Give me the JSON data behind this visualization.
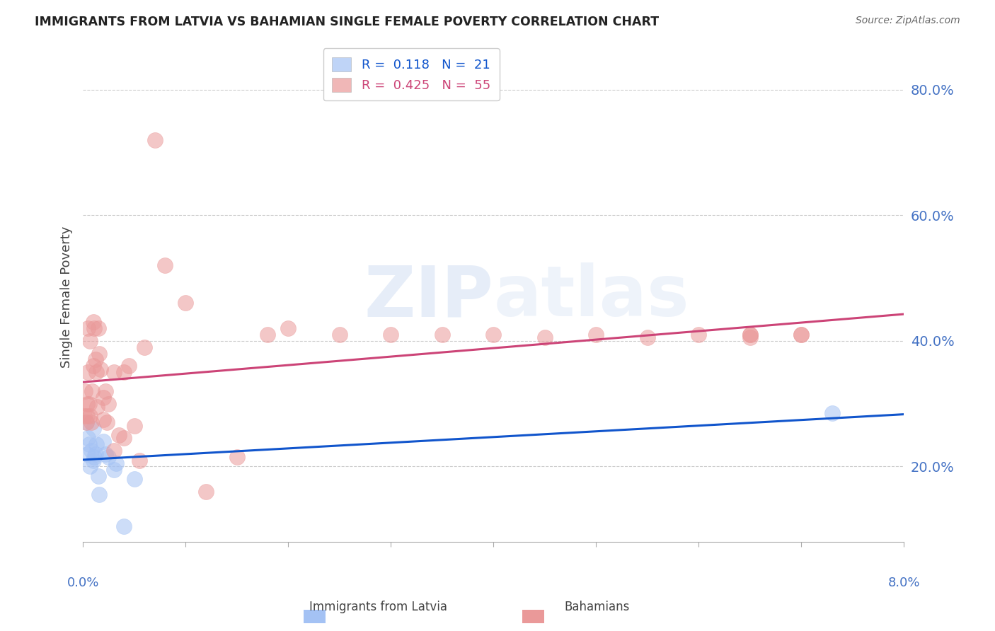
{
  "title": "IMMIGRANTS FROM LATVIA VS BAHAMIAN SINGLE FEMALE POVERTY CORRELATION CHART",
  "source": "Source: ZipAtlas.com",
  "ylabel": "Single Female Poverty",
  "legend_blue_R": "0.118",
  "legend_blue_N": "21",
  "legend_pink_R": "0.425",
  "legend_pink_N": "55",
  "legend_label_blue": "Immigrants from Latvia",
  "legend_label_pink": "Bahamians",
  "watermark": "ZIPatlas",
  "blue_color": "#a4c2f4",
  "pink_color": "#ea9999",
  "blue_line_color": "#1155cc",
  "pink_line_color": "#cc4477",
  "blue_x": [
    0.0003,
    0.0004,
    0.0005,
    0.0006,
    0.0007,
    0.0008,
    0.001,
    0.001,
    0.0011,
    0.0012,
    0.0013,
    0.0015,
    0.0016,
    0.002,
    0.0022,
    0.0025,
    0.003,
    0.0032,
    0.004,
    0.005,
    0.073
  ],
  "blue_y": [
    0.27,
    0.22,
    0.245,
    0.235,
    0.2,
    0.225,
    0.26,
    0.21,
    0.215,
    0.22,
    0.235,
    0.185,
    0.155,
    0.24,
    0.22,
    0.215,
    0.195,
    0.205,
    0.105,
    0.18,
    0.285
  ],
  "pink_x": [
    0.0001,
    0.0002,
    0.0003,
    0.0004,
    0.0004,
    0.0005,
    0.0005,
    0.0006,
    0.0007,
    0.0007,
    0.0008,
    0.0009,
    0.001,
    0.001,
    0.0011,
    0.0012,
    0.0013,
    0.0014,
    0.0015,
    0.0016,
    0.0017,
    0.002,
    0.002,
    0.0022,
    0.0023,
    0.0025,
    0.003,
    0.003,
    0.0035,
    0.004,
    0.004,
    0.0045,
    0.005,
    0.0055,
    0.006,
    0.007,
    0.008,
    0.01,
    0.012,
    0.015,
    0.018,
    0.02,
    0.025,
    0.03,
    0.035,
    0.04,
    0.045,
    0.05,
    0.055,
    0.06,
    0.065,
    0.065,
    0.065,
    0.07,
    0.07
  ],
  "pink_y": [
    0.28,
    0.32,
    0.27,
    0.3,
    0.28,
    0.42,
    0.35,
    0.3,
    0.4,
    0.28,
    0.27,
    0.32,
    0.43,
    0.36,
    0.42,
    0.37,
    0.35,
    0.295,
    0.42,
    0.38,
    0.355,
    0.31,
    0.275,
    0.32,
    0.27,
    0.3,
    0.35,
    0.225,
    0.25,
    0.35,
    0.245,
    0.36,
    0.265,
    0.21,
    0.39,
    0.72,
    0.52,
    0.46,
    0.16,
    0.215,
    0.41,
    0.42,
    0.41,
    0.41,
    0.41,
    0.41,
    0.405,
    0.41,
    0.405,
    0.41,
    0.41,
    0.41,
    0.405,
    0.41,
    0.41
  ],
  "xmin": 0.0,
  "xmax": 0.08,
  "ymin": 0.08,
  "ymax": 0.86,
  "ytick_positions": [
    0.2,
    0.4,
    0.6,
    0.8
  ],
  "xtick_labels_pos": [
    0.0,
    0.08
  ],
  "xtick_labels": [
    "0.0%",
    "8.0%"
  ],
  "right_ytick_labels": [
    "20.0%",
    "40.0%",
    "60.0%",
    "80.0%"
  ]
}
